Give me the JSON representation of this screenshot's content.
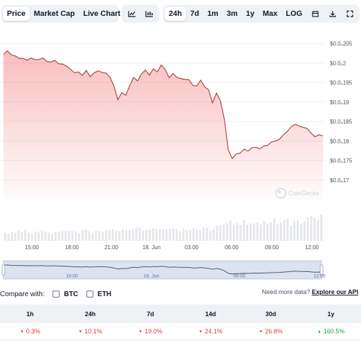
{
  "tabs": {
    "price": "Price",
    "market_cap": "Market Cap",
    "live_chart": "Live Chart",
    "live_chart_icon": "external-link-icon",
    "line_icon": "line-chart-icon",
    "candle_icon": "candlestick-icon"
  },
  "ranges": {
    "h24": "24h",
    "d7": "7d",
    "m1": "1m",
    "m3": "3m",
    "y1": "1y",
    "max": "Max",
    "log": "LOG",
    "calendar_icon": "calendar-icon",
    "download_icon": "download-icon",
    "expand_icon": "expand-icon"
  },
  "chart_data": {
    "type": "area",
    "x_ticks": [
      "15:00",
      "18:00",
      "21:00",
      "18. Jun",
      "03:00",
      "06:00",
      "09:00",
      "12:00"
    ],
    "y_ticks": [
      "$0.0₄205",
      "$0.0₄2",
      "$0.0₄195",
      "$0.0₄19",
      "$0.0₄185",
      "$0.0₄18",
      "$0.0₄175",
      "$0.0₄17"
    ],
    "ylim": [
      1.65e-05,
      2.05e-05
    ],
    "y": [
      2.022e-05,
      2.031e-05,
      2.021e-05,
      2.018e-05,
      2.012e-05,
      2.012e-05,
      2.007e-05,
      2.013e-05,
      2.008e-05,
      2.009e-05,
      2.013e-05,
      2.004e-05,
      2.002e-05,
      2.007e-05,
      1.998e-05,
      1.997e-05,
      1.992e-05,
      1.984e-05,
      1.975e-05,
      1.977e-05,
      1.968e-05,
      1.981e-05,
      1.965e-05,
      1.975e-05,
      1.98e-05,
      1.976e-05,
      1.974e-05,
      1.964e-05,
      1.941e-05,
      1.906e-05,
      1.924e-05,
      1.917e-05,
      1.942e-05,
      1.963e-05,
      1.954e-05,
      1.972e-05,
      1.982e-05,
      1.969e-05,
      1.985e-05,
      1.977e-05,
      1.995e-05,
      1.983e-05,
      1.962e-05,
      1.973e-05,
      1.963e-05,
      1.96e-05,
      1.958e-05,
      1.957e-05,
      1.943e-05,
      1.941e-05,
      1.956e-05,
      1.939e-05,
      1.931e-05,
      1.898e-05,
      1.923e-05,
      1.903e-05,
      1.856e-05,
      1.777e-05,
      1.755e-05,
      1.767e-05,
      1.769e-05,
      1.779e-05,
      1.774e-05,
      1.783e-05,
      1.784e-05,
      1.78e-05,
      1.787e-05,
      1.789e-05,
      1.798e-05,
      1.8e-05,
      1.805e-05,
      1.816e-05,
      1.825e-05,
      1.837e-05,
      1.843e-05,
      1.838e-05,
      1.835e-05,
      1.832e-05,
      1.82e-05,
      1.811e-05,
      1.816e-05,
      1.813e-05
    ],
    "bars": [
      0.3,
      0.28,
      0.34,
      0.31,
      0.4,
      0.33,
      0.43,
      0.31,
      0.28,
      0.36,
      0.33,
      0.39,
      0.35,
      0.31,
      0.27,
      0.34,
      0.35,
      0.37,
      0.38,
      0.39,
      0.38,
      0.38,
      0.29,
      0.41,
      0.44,
      0.37,
      0.31,
      0.4,
      0.38,
      0.35,
      0.4,
      0.41,
      0.45,
      0.38,
      0.36,
      0.44,
      0.42,
      0.42,
      0.43,
      0.51,
      0.5,
      0.4,
      0.4,
      0.43,
      0.48,
      0.44,
      0.44,
      0.45,
      0.43,
      0.45,
      0.47,
      0.44,
      0.37,
      0.47,
      0.41,
      0.42,
      0.49,
      0.43,
      0.41,
      0.51,
      0.5,
      0.38,
      0.44,
      0.58,
      0.59,
      0.62,
      0.67,
      0.79,
      0.61,
      0.68,
      0.61,
      0.79,
      0.62,
      0.67,
      0.66,
      0.7,
      0.62,
      0.75,
      0.65,
      0.7,
      0.87,
      0.64,
      0.71,
      0.8,
      0.84,
      0.59,
      0.76,
      0.77,
      0.67,
      0.75,
      0.9,
      0.95,
      0.87,
      0.78,
      1.0
    ],
    "line_color": "#b04444",
    "fill_color": "#ef4444"
  },
  "watermark": "CoinGecko",
  "navigator": {
    "x_ticks": [
      "18:00",
      "18. Jun",
      "06:00",
      "12:00"
    ]
  },
  "compare": {
    "label": "Compare with:",
    "btc": "BTC",
    "eth": "ETH",
    "more_text": "Need more data?",
    "api_link": "Explore our API"
  },
  "performance": {
    "headers": [
      "1h",
      "24h",
      "7d",
      "14d",
      "30d",
      "1y"
    ],
    "values": [
      "0.3%",
      "10.1%",
      "19.0%",
      "24.1%",
      "26.8%",
      "160.5%"
    ],
    "directions": [
      "down",
      "down",
      "down",
      "down",
      "down",
      "up"
    ]
  }
}
